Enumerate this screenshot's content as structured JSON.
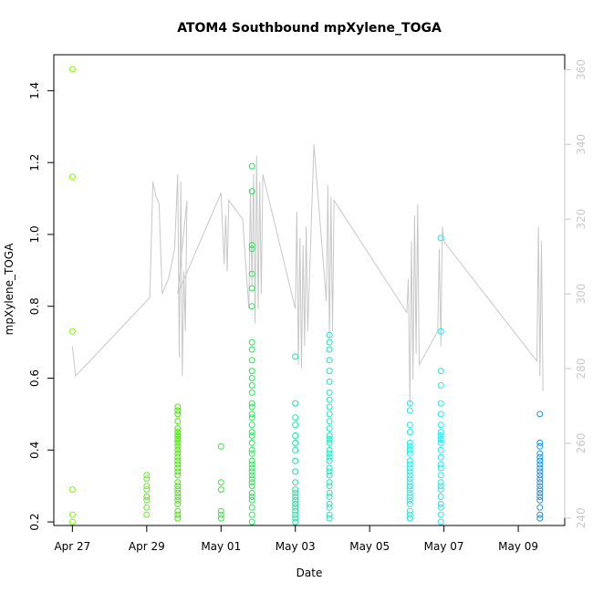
{
  "chart_data": {
    "type": "scatter",
    "title": "ATOM4 Southbound mpXylene_TOGA",
    "xlabel": "Date",
    "ylabel": "mpXylene_TOGA",
    "x_ticks": [
      "Apr 27",
      "Apr 29",
      "May 01",
      "May 03",
      "May 05",
      "May 07",
      "May 09"
    ],
    "xlim": [
      "2018-04-26 12:00",
      "2018-05-10 06:00"
    ],
    "ylim": [
      0.19,
      1.5
    ],
    "y_ticks": [
      0.2,
      0.4,
      0.6,
      0.8,
      1.0,
      1.2,
      1.4
    ],
    "y_tick_labels": [
      "0.2",
      "0.4",
      "0.6",
      "0.8",
      "1.0",
      "1.2",
      "1.4"
    ],
    "y2_ticks": [
      240,
      260,
      280,
      300,
      320,
      340,
      360
    ],
    "y2lim": [
      238,
      364
    ],
    "grid": false,
    "series": [
      {
        "kind": "points",
        "x": [
          "2018-04-27",
          "2018-04-27",
          "2018-04-27",
          "2018-04-27",
          "2018-04-27",
          "2018-04-27"
        ],
        "y": [
          1.46,
          1.16,
          0.73,
          0.29,
          0.22,
          0.2
        ],
        "color": "#7cfc00"
      },
      {
        "kind": "points",
        "x": [
          "2018-04-29",
          "2018-04-29",
          "2018-04-29",
          "2018-04-29",
          "2018-04-29",
          "2018-04-29",
          "2018-04-29",
          "2018-04-29",
          "2018-04-29"
        ],
        "y": [
          0.33,
          0.32,
          0.3,
          0.29,
          0.27,
          0.27,
          0.26,
          0.24,
          0.22
        ],
        "color": "#66ee22"
      },
      {
        "kind": "points",
        "x": [
          "2018-04-29 20:00",
          "2018-04-29 20:00",
          "2018-04-29 20:00",
          "2018-04-29 20:00",
          "2018-04-29 20:00",
          "2018-04-29 20:00",
          "2018-04-29 20:00",
          "2018-04-29 20:00",
          "2018-04-29 20:00",
          "2018-04-29 20:00",
          "2018-04-29 20:00",
          "2018-04-29 20:00",
          "2018-04-29 20:00",
          "2018-04-29 20:00",
          "2018-04-29 20:00",
          "2018-04-29 20:00",
          "2018-04-29 20:00",
          "2018-04-29 20:00",
          "2018-04-29 20:00",
          "2018-04-29 20:00",
          "2018-04-29 20:00",
          "2018-04-29 20:00",
          "2018-04-29 20:00",
          "2018-04-29 20:00",
          "2018-04-29 20:00",
          "2018-04-29 20:00",
          "2018-04-29 20:00",
          "2018-04-29 20:00",
          "2018-04-29 20:00",
          "2018-04-29 20:00"
        ],
        "y": [
          0.52,
          0.51,
          0.5,
          0.48,
          0.46,
          0.45,
          0.44,
          0.44,
          0.43,
          0.43,
          0.42,
          0.41,
          0.4,
          0.39,
          0.38,
          0.37,
          0.36,
          0.35,
          0.34,
          0.33,
          0.31,
          0.3,
          0.29,
          0.28,
          0.27,
          0.26,
          0.25,
          0.23,
          0.22,
          0.21
        ],
        "color": "#44e800"
      },
      {
        "kind": "points",
        "x": [
          "2018-05-01",
          "2018-05-01",
          "2018-05-01",
          "2018-05-01",
          "2018-05-01",
          "2018-05-01"
        ],
        "y": [
          0.41,
          0.31,
          0.29,
          0.23,
          0.22,
          0.21
        ],
        "color": "#3ce63c"
      },
      {
        "kind": "points",
        "x": [
          "2018-05-01 20:00",
          "2018-05-01 20:00",
          "2018-05-01 20:00",
          "2018-05-01 20:00",
          "2018-05-01 20:00",
          "2018-05-01 20:00",
          "2018-05-01 20:00",
          "2018-05-01 20:00",
          "2018-05-01 20:00",
          "2018-05-01 20:00",
          "2018-05-01 20:00",
          "2018-05-01 20:00",
          "2018-05-01 20:00",
          "2018-05-01 20:00",
          "2018-05-01 20:00",
          "2018-05-01 20:00",
          "2018-05-01 20:00",
          "2018-05-01 20:00",
          "2018-05-01 20:00",
          "2018-05-01 20:00",
          "2018-05-01 20:00",
          "2018-05-01 20:00",
          "2018-05-01 20:00",
          "2018-05-01 20:00",
          "2018-05-01 20:00",
          "2018-05-01 20:00",
          "2018-05-01 20:00",
          "2018-05-01 20:00",
          "2018-05-01 20:00",
          "2018-05-01 20:00",
          "2018-05-01 20:00",
          "2018-05-01 20:00",
          "2018-05-01 20:00",
          "2018-05-01 20:00",
          "2018-05-01 20:00",
          "2018-05-01 20:00",
          "2018-05-01 20:00",
          "2018-05-01 20:00"
        ],
        "y": [
          1.19,
          1.12,
          0.97,
          0.96,
          0.89,
          0.85,
          0.8,
          0.7,
          0.68,
          0.65,
          0.62,
          0.6,
          0.58,
          0.56,
          0.53,
          0.52,
          0.5,
          0.49,
          0.47,
          0.45,
          0.44,
          0.42,
          0.4,
          0.39,
          0.37,
          0.36,
          0.35,
          0.34,
          0.33,
          0.32,
          0.31,
          0.3,
          0.28,
          0.27,
          0.26,
          0.24,
          0.22,
          0.2
        ],
        "color": "#22e855"
      },
      {
        "kind": "points",
        "x": [
          "2018-05-03",
          "2018-05-03",
          "2018-05-03",
          "2018-05-03",
          "2018-05-03",
          "2018-05-03",
          "2018-05-03",
          "2018-05-03",
          "2018-05-03",
          "2018-05-03",
          "2018-05-03",
          "2018-05-03",
          "2018-05-03",
          "2018-05-03",
          "2018-05-03",
          "2018-05-03",
          "2018-05-03",
          "2018-05-03",
          "2018-05-03",
          "2018-05-03",
          "2018-05-03"
        ],
        "y": [
          0.66,
          0.53,
          0.49,
          0.47,
          0.44,
          0.42,
          0.4,
          0.37,
          0.34,
          0.31,
          0.29,
          0.28,
          0.27,
          0.26,
          0.25,
          0.25,
          0.24,
          0.23,
          0.22,
          0.21,
          0.2
        ],
        "color": "#1ee3a0"
      },
      {
        "kind": "points",
        "x": [
          "2018-05-03 22:00",
          "2018-05-03 22:00",
          "2018-05-03 22:00",
          "2018-05-03 22:00",
          "2018-05-03 22:00",
          "2018-05-03 22:00",
          "2018-05-03 22:00",
          "2018-05-03 22:00",
          "2018-05-03 22:00",
          "2018-05-03 22:00",
          "2018-05-03 22:00",
          "2018-05-03 22:00",
          "2018-05-03 22:00",
          "2018-05-03 22:00",
          "2018-05-03 22:00",
          "2018-05-03 22:00",
          "2018-05-03 22:00",
          "2018-05-03 22:00",
          "2018-05-03 22:00",
          "2018-05-03 22:00",
          "2018-05-03 22:00",
          "2018-05-03 22:00",
          "2018-05-03 22:00",
          "2018-05-03 22:00",
          "2018-05-03 22:00",
          "2018-05-03 22:00",
          "2018-05-03 22:00",
          "2018-05-03 22:00",
          "2018-05-03 22:00",
          "2018-05-03 22:00"
        ],
        "y": [
          0.72,
          0.7,
          0.68,
          0.65,
          0.62,
          0.59,
          0.56,
          0.54,
          0.52,
          0.5,
          0.48,
          0.46,
          0.44,
          0.43,
          0.42,
          0.4,
          0.39,
          0.38,
          0.37,
          0.35,
          0.34,
          0.33,
          0.31,
          0.3,
          0.28,
          0.27,
          0.25,
          0.24,
          0.22,
          0.21
        ],
        "color": "#1ee6c0"
      },
      {
        "kind": "points",
        "x": [
          "2018-05-06 02:00",
          "2018-05-06 02:00",
          "2018-05-06 02:00",
          "2018-05-06 02:00",
          "2018-05-06 02:00",
          "2018-05-06 02:00",
          "2018-05-06 02:00",
          "2018-05-06 02:00",
          "2018-05-06 02:00",
          "2018-05-06 02:00",
          "2018-05-06 02:00",
          "2018-05-06 02:00",
          "2018-05-06 02:00",
          "2018-05-06 02:00",
          "2018-05-06 02:00",
          "2018-05-06 02:00",
          "2018-05-06 02:00",
          "2018-05-06 02:00",
          "2018-05-06 02:00",
          "2018-05-06 02:00",
          "2018-05-06 02:00",
          "2018-05-06 02:00",
          "2018-05-06 02:00",
          "2018-05-06 02:00",
          "2018-05-06 02:00",
          "2018-05-06 02:00"
        ],
        "y": [
          0.53,
          0.51,
          0.47,
          0.45,
          0.42,
          0.41,
          0.4,
          0.39,
          0.37,
          0.36,
          0.35,
          0.34,
          0.33,
          0.32,
          0.31,
          0.3,
          0.3,
          0.29,
          0.28,
          0.27,
          0.26,
          0.25,
          0.23,
          0.22,
          0.21,
          0.21
        ],
        "color": "#28e8e0"
      },
      {
        "kind": "points",
        "x": [
          "2018-05-06 22:00",
          "2018-05-06 22:00",
          "2018-05-06 22:00",
          "2018-05-06 22:00",
          "2018-05-06 22:00",
          "2018-05-06 22:00",
          "2018-05-06 22:00",
          "2018-05-06 22:00",
          "2018-05-06 22:00",
          "2018-05-06 22:00",
          "2018-05-06 22:00",
          "2018-05-06 22:00",
          "2018-05-06 22:00",
          "2018-05-06 22:00",
          "2018-05-06 22:00",
          "2018-05-06 22:00",
          "2018-05-06 22:00",
          "2018-05-06 22:00",
          "2018-05-06 22:00",
          "2018-05-06 22:00",
          "2018-05-06 22:00",
          "2018-05-06 22:00",
          "2018-05-06 22:00",
          "2018-05-06 22:00"
        ],
        "y": [
          0.99,
          0.73,
          0.62,
          0.58,
          0.53,
          0.5,
          0.47,
          0.45,
          0.44,
          0.43,
          0.42,
          0.4,
          0.38,
          0.36,
          0.35,
          0.33,
          0.31,
          0.3,
          0.29,
          0.27,
          0.25,
          0.24,
          0.22,
          0.2
        ],
        "color": "#22e8f0"
      },
      {
        "kind": "points",
        "x": [
          "2018-05-09 14:00",
          "2018-05-09 14:00",
          "2018-05-09 14:00",
          "2018-05-09 14:00",
          "2018-05-09 14:00",
          "2018-05-09 14:00",
          "2018-05-09 14:00",
          "2018-05-09 14:00",
          "2018-05-09 14:00",
          "2018-05-09 14:00",
          "2018-05-09 14:00",
          "2018-05-09 14:00",
          "2018-05-09 14:00",
          "2018-05-09 14:00",
          "2018-05-09 14:00",
          "2018-05-09 14:00",
          "2018-05-09 14:00",
          "2018-05-09 14:00",
          "2018-05-09 14:00",
          "2018-05-09 14:00"
        ],
        "y": [
          0.5,
          0.42,
          0.41,
          0.39,
          0.38,
          0.37,
          0.36,
          0.35,
          0.34,
          0.33,
          0.32,
          0.31,
          0.3,
          0.29,
          0.28,
          0.27,
          0.26,
          0.24,
          0.22,
          0.21
        ],
        "color": "#1e90e0"
      },
      {
        "kind": "line",
        "axis": "right",
        "color": "#c8c8c8",
        "x": [
          "2018-04-27",
          "2018-04-27 02:00",
          "2018-04-29 02:00",
          "2018-04-29 04:00",
          "2018-04-29 06:00",
          "2018-04-29 08:00",
          "2018-04-29 10:00",
          "2018-04-29 14:00",
          "2018-04-29 18:00",
          "2018-04-29 20:00",
          "2018-04-29 21:00",
          "2018-04-29 22:00",
          "2018-04-29 23:00",
          "2018-04-30",
          "2018-04-30 01:00",
          "2018-04-30 02:00",
          "2018-04-29 20:00",
          "2018-05-01",
          "2018-05-01 02:00",
          "2018-05-01 03:00",
          "2018-05-01 04:00",
          "2018-05-01 05:00",
          "2018-05-01 14:00",
          "2018-05-01 18:00",
          "2018-05-01 19:00",
          "2018-05-01 20:00",
          "2018-05-01 21:00",
          "2018-05-01 22:00",
          "2018-05-01 23:00",
          "2018-05-02",
          "2018-05-02 01:00",
          "2018-05-02 02:00",
          "2018-05-02 03:00",
          "2018-05-03",
          "2018-05-03 01:00",
          "2018-05-03 02:00",
          "2018-05-03 03:00",
          "2018-05-03 04:00",
          "2018-05-03 05:00",
          "2018-05-03 06:00",
          "2018-05-03 07:00",
          "2018-05-03 08:00",
          "2018-05-03 12:00",
          "2018-05-03 20:00",
          "2018-05-03 21:00",
          "2018-05-03 22:00",
          "2018-05-03 23:00",
          "2018-05-04",
          "2018-05-04 01:00",
          "2018-05-06",
          "2018-05-06 01:00",
          "2018-05-06 02:00",
          "2018-05-06 03:00",
          "2018-05-06 04:00",
          "2018-05-06 05:00",
          "2018-05-06 06:00",
          "2018-05-06 07:00",
          "2018-05-06 08:00",
          "2018-05-06 20:00",
          "2018-05-06 21:00",
          "2018-05-06 22:00",
          "2018-05-06 23:00",
          "2018-05-07",
          "2018-05-09 12:00",
          "2018-05-09 13:00",
          "2018-05-09 14:00",
          "2018-05-09 15:00",
          "2018-05-09 16:00"
        ],
        "y": [
          286,
          278,
          299,
          330,
          326,
          324,
          300,
          304,
          312,
          332,
          283,
          330,
          278,
          306,
          290,
          325,
          300,
          327,
          308,
          321,
          306,
          325,
          320,
          296,
          328,
          302,
          332,
          292,
          337,
          296,
          330,
          300,
          332,
          296,
          322,
          281,
          315,
          280,
          313,
          286,
          318,
          290,
          340,
          298,
          329,
          288,
          326,
          290,
          325,
          295,
          304,
          270,
          314,
          277,
          321,
          284,
          324,
          281,
          290,
          312,
          286,
          318,
          314,
          282,
          318,
          278,
          314,
          274
        ]
      }
    ]
  }
}
